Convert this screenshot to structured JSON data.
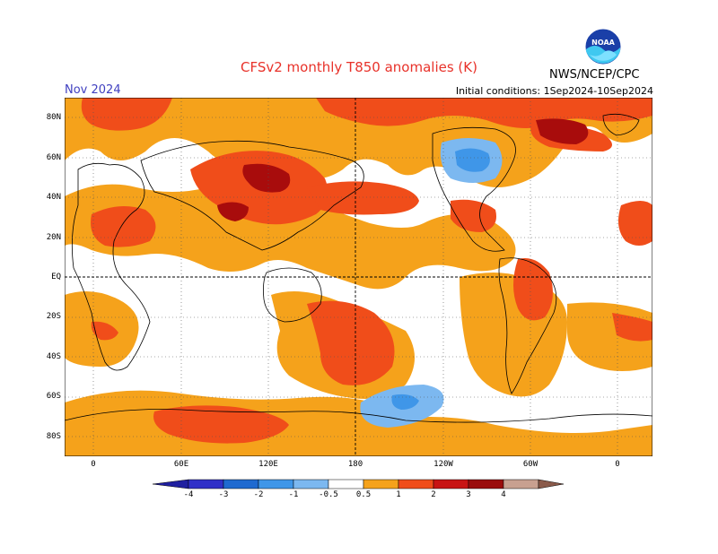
{
  "header": {
    "title": "CFSv2 monthly T850 anomalies (K)",
    "month": "Nov 2024",
    "initial_conditions": "Initial conditions: 1Sep2024-10Sep2024",
    "agency": "NWS/NCEP/CPC",
    "logo_text": "NOAA"
  },
  "map": {
    "lat_labels": [
      "80N",
      "60N",
      "40N",
      "20N",
      "EQ",
      "20S",
      "40S",
      "60S",
      "80S"
    ],
    "lon_labels": [
      "0",
      "60E",
      "120E",
      "180",
      "120W",
      "60W",
      "0"
    ]
  },
  "colorbar": {
    "levels": [
      "-4",
      "-3",
      "-2",
      "-1",
      "-0.5",
      "0.5",
      "1",
      "2",
      "3",
      "4"
    ],
    "colors": [
      "#2020a0",
      "#3030c8",
      "#1f6ad0",
      "#3f96e8",
      "#7cb8f0",
      "#ffffff",
      "#f5a21b",
      "#f04d1a",
      "#c81414",
      "#9a0c0c",
      "#c8a090",
      "#8a5a4a"
    ]
  },
  "colors": {
    "weak_warm": "#f5a21b",
    "warm": "#f04d1a",
    "strong_warm": "#a80c0c",
    "weak_cold": "#7cb8f0",
    "cold": "#3f96e8",
    "title": "#e8322a"
  }
}
